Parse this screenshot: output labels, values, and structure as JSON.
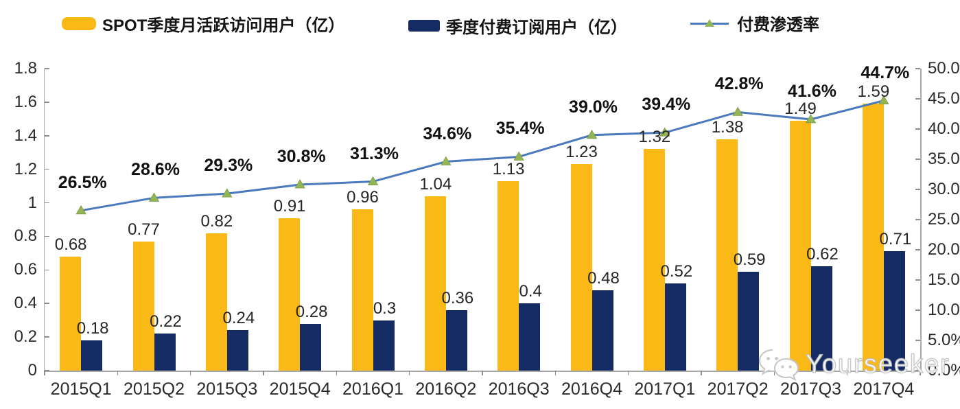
{
  "legend": {
    "items": [
      {
        "label": "SPOT季度月活跃访问用户（亿）",
        "swatch": "bar",
        "color": "#FBB917"
      },
      {
        "label": "季度付费订阅用户（亿）",
        "swatch": "bar",
        "color": "#152B63"
      },
      {
        "label": "付费渗透率",
        "swatch": "line-marker",
        "line_color": "#4A79BC",
        "marker_color": "#93B555"
      }
    ]
  },
  "chart_data": {
    "type": "combo",
    "categories": [
      "2015Q1",
      "2015Q2",
      "2015Q3",
      "2015Q4",
      "2016Q1",
      "2016Q2",
      "2016Q3",
      "2016Q4",
      "2017Q1",
      "2017Q2",
      "2017Q3",
      "2017Q4"
    ],
    "series": [
      {
        "name": "SPOT季度月活跃访问用户（亿）",
        "type": "bar",
        "axis": "left",
        "color": "#FBB917",
        "values": [
          0.68,
          0.77,
          0.82,
          0.91,
          0.96,
          1.04,
          1.13,
          1.23,
          1.32,
          1.38,
          1.49,
          1.59
        ],
        "labels": [
          "0.68",
          "0.77",
          "0.82",
          "0.91",
          "0.96",
          "1.04",
          "1.13",
          "1.23",
          "1.32",
          "1.38",
          "1.49",
          "1.59"
        ]
      },
      {
        "name": "季度付费订阅用户（亿）",
        "type": "bar",
        "axis": "left",
        "color": "#152B63",
        "values": [
          0.18,
          0.22,
          0.24,
          0.28,
          0.3,
          0.36,
          0.4,
          0.48,
          0.52,
          0.59,
          0.62,
          0.71
        ],
        "labels": [
          "0.18",
          "0.22",
          "0.24",
          "0.28",
          "0.3",
          "0.36",
          "0.4",
          "0.48",
          "0.52",
          "0.59",
          "0.62",
          "0.71"
        ]
      },
      {
        "name": "付费渗透率",
        "type": "line",
        "axis": "right",
        "color": "#4A79BC",
        "marker": "triangle",
        "marker_color": "#93B555",
        "values": [
          26.5,
          28.6,
          29.3,
          30.8,
          31.3,
          34.6,
          35.4,
          39.0,
          39.4,
          42.8,
          41.6,
          44.7
        ],
        "labels": [
          "26.5%",
          "28.6%",
          "29.3%",
          "30.8%",
          "31.3%",
          "34.6%",
          "35.4%",
          "39.0%",
          "39.4%",
          "42.8%",
          "41.6%",
          "44.7%"
        ]
      }
    ],
    "left_axis": {
      "min": 0,
      "max": 1.8,
      "step": 0.2,
      "tick_labels": [
        "0",
        "0.2",
        "0.4",
        "0.6",
        "0.8",
        "1",
        "1.2",
        "1.4",
        "1.6",
        "1.8"
      ]
    },
    "right_axis": {
      "min": 0,
      "max": 50,
      "step": 5,
      "tick_labels": [
        "0.0%",
        "5.0%",
        "10.0%",
        "15.0%",
        "20.0%",
        "25.0%",
        "30.0%",
        "35.0%",
        "40.0%",
        "45.0%",
        "50.0%"
      ]
    },
    "grid": false,
    "legend_position": "top",
    "axis_color": "#a9a9a9"
  },
  "watermark": {
    "text": "Yourseeker",
    "icon": "wechat-icon"
  }
}
